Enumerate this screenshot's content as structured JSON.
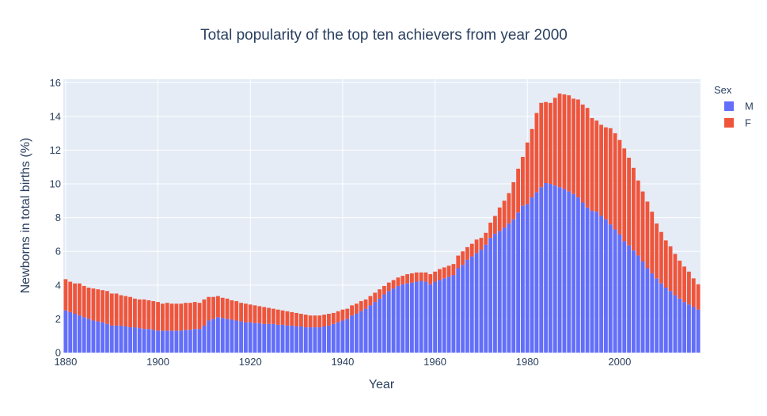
{
  "chart_data": {
    "type": "bar",
    "barmode": "stack",
    "title": "Total popularity of the top ten achievers from year 2000",
    "xlabel": "Year",
    "ylabel": "Newborns in total births (%)",
    "xlim": [
      1879.5,
      2017.5
    ],
    "ylim": [
      0,
      16.2
    ],
    "xticks": [
      1880,
      1900,
      1920,
      1940,
      1960,
      1980,
      2000
    ],
    "yticks": [
      0,
      2,
      4,
      6,
      8,
      10,
      12,
      14,
      16
    ],
    "grid": true,
    "legend": {
      "title": "Sex",
      "placement": "right-top"
    },
    "x": [
      1880,
      1881,
      1882,
      1883,
      1884,
      1885,
      1886,
      1887,
      1888,
      1889,
      1890,
      1891,
      1892,
      1893,
      1894,
      1895,
      1896,
      1897,
      1898,
      1899,
      1900,
      1901,
      1902,
      1903,
      1904,
      1905,
      1906,
      1907,
      1908,
      1909,
      1910,
      1911,
      1912,
      1913,
      1914,
      1915,
      1916,
      1917,
      1918,
      1919,
      1920,
      1921,
      1922,
      1923,
      1924,
      1925,
      1926,
      1927,
      1928,
      1929,
      1930,
      1931,
      1932,
      1933,
      1934,
      1935,
      1936,
      1937,
      1938,
      1939,
      1940,
      1941,
      1942,
      1943,
      1944,
      1945,
      1946,
      1947,
      1948,
      1949,
      1950,
      1951,
      1952,
      1953,
      1954,
      1955,
      1956,
      1957,
      1958,
      1959,
      1960,
      1961,
      1962,
      1963,
      1964,
      1965,
      1966,
      1967,
      1968,
      1969,
      1970,
      1971,
      1972,
      1973,
      1974,
      1975,
      1976,
      1977,
      1978,
      1979,
      1980,
      1981,
      1982,
      1983,
      1984,
      1985,
      1986,
      1987,
      1988,
      1989,
      1990,
      1991,
      1992,
      1993,
      1994,
      1995,
      1996,
      1997,
      1998,
      1999,
      2000,
      2001,
      2002,
      2003,
      2004,
      2005,
      2006,
      2007,
      2008,
      2009,
      2010,
      2011,
      2012,
      2013,
      2014,
      2015,
      2016,
      2017
    ],
    "series": [
      {
        "name": "M",
        "color": "#636efa",
        "values": [
          2.5,
          2.4,
          2.3,
          2.2,
          2.1,
          2.0,
          1.9,
          1.85,
          1.8,
          1.7,
          1.6,
          1.6,
          1.6,
          1.55,
          1.5,
          1.5,
          1.45,
          1.4,
          1.4,
          1.35,
          1.3,
          1.3,
          1.3,
          1.3,
          1.3,
          1.3,
          1.35,
          1.35,
          1.4,
          1.4,
          1.6,
          1.9,
          2.0,
          2.1,
          2.05,
          2.0,
          1.95,
          1.9,
          1.85,
          1.8,
          1.8,
          1.75,
          1.75,
          1.7,
          1.7,
          1.7,
          1.65,
          1.65,
          1.6,
          1.6,
          1.55,
          1.55,
          1.5,
          1.5,
          1.5,
          1.5,
          1.55,
          1.6,
          1.7,
          1.8,
          1.9,
          2.0,
          2.2,
          2.3,
          2.45,
          2.6,
          2.8,
          3.0,
          3.2,
          3.45,
          3.65,
          3.8,
          3.95,
          4.05,
          4.1,
          4.15,
          4.2,
          4.25,
          4.2,
          4.05,
          4.2,
          4.3,
          4.4,
          4.5,
          4.6,
          5.0,
          5.2,
          5.5,
          5.7,
          5.9,
          6.1,
          6.4,
          6.8,
          7.05,
          7.2,
          7.4,
          7.65,
          7.9,
          8.3,
          8.7,
          8.8,
          9.2,
          9.5,
          9.8,
          10.05,
          10.0,
          9.9,
          9.8,
          9.7,
          9.55,
          9.4,
          9.2,
          8.9,
          8.6,
          8.4,
          8.35,
          8.1,
          7.9,
          7.6,
          7.3,
          7.0,
          6.6,
          6.35,
          6.05,
          5.75,
          5.4,
          5.0,
          4.7,
          4.4,
          4.1,
          3.85,
          3.65,
          3.4,
          3.2,
          3.0,
          2.85,
          2.7,
          2.55
        ]
      },
      {
        "name": "F",
        "color": "#ef553b",
        "values": [
          1.85,
          1.8,
          1.8,
          1.9,
          1.85,
          1.85,
          1.9,
          1.9,
          1.9,
          1.95,
          1.9,
          1.9,
          1.8,
          1.8,
          1.8,
          1.7,
          1.7,
          1.75,
          1.7,
          1.7,
          1.7,
          1.6,
          1.65,
          1.6,
          1.6,
          1.6,
          1.6,
          1.6,
          1.6,
          1.55,
          1.55,
          1.4,
          1.3,
          1.25,
          1.2,
          1.2,
          1.15,
          1.15,
          1.1,
          1.1,
          1.05,
          1.05,
          1.0,
          1.0,
          0.95,
          0.9,
          0.9,
          0.85,
          0.85,
          0.8,
          0.8,
          0.75,
          0.75,
          0.7,
          0.7,
          0.7,
          0.7,
          0.7,
          0.65,
          0.65,
          0.65,
          0.6,
          0.6,
          0.6,
          0.6,
          0.55,
          0.55,
          0.55,
          0.55,
          0.5,
          0.5,
          0.5,
          0.5,
          0.5,
          0.55,
          0.55,
          0.55,
          0.5,
          0.55,
          0.6,
          0.6,
          0.65,
          0.65,
          0.65,
          0.65,
          0.75,
          0.8,
          0.75,
          0.75,
          0.8,
          0.7,
          0.7,
          0.9,
          1.05,
          1.4,
          1.6,
          1.8,
          2.2,
          2.6,
          2.9,
          3.65,
          4.05,
          4.7,
          5.0,
          4.8,
          4.8,
          5.2,
          5.55,
          5.6,
          5.7,
          5.65,
          5.8,
          5.8,
          5.9,
          5.5,
          5.4,
          5.4,
          5.45,
          5.7,
          5.7,
          5.6,
          5.5,
          5.2,
          4.9,
          4.45,
          4.15,
          3.95,
          3.65,
          3.25,
          3.05,
          2.8,
          2.65,
          2.45,
          2.25,
          2.1,
          1.95,
          1.7,
          1.5
        ]
      }
    ]
  }
}
